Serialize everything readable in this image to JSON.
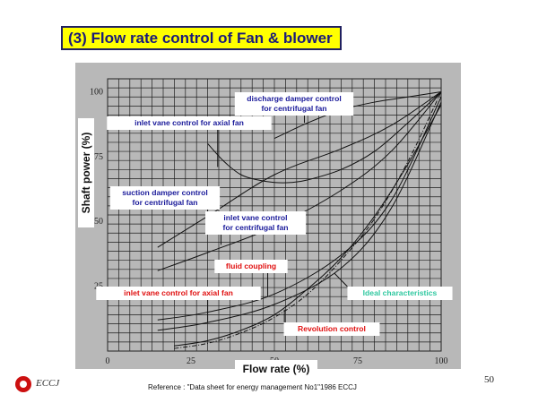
{
  "slide": {
    "title": "(3) Flow rate control of Fan & blower",
    "page_number": "50",
    "reference": "Reference : \"Data sheet for energy management No1\"1986 ECCJ",
    "logo_text": "ECCJ"
  },
  "colors": {
    "plot_background": "#b8b8b8",
    "title_background": "#ffff00",
    "label_blue": "#1a1a9a",
    "label_red": "#e01010",
    "label_green": "#30c8a0"
  },
  "chart_data": {
    "type": "line",
    "xlabel": "Flow rate  (%)",
    "ylabel": "Shaft power  (%)",
    "xlim": [
      0,
      100
    ],
    "ylim": [
      0,
      105
    ],
    "x_ticks": [
      "0",
      "25",
      "50",
      "75",
      "100"
    ],
    "y_ticks": [
      "25",
      "50",
      "75",
      "100"
    ],
    "grid": true,
    "series": [
      {
        "name": "discharge damper control for centrifugal fan",
        "color": "label_blue",
        "x": [
          50,
          60,
          70,
          80,
          90,
          100
        ],
        "y": [
          82,
          88,
          93,
          96,
          98,
          100
        ]
      },
      {
        "name": "inlet  vane  control for axial fan",
        "color": "label_blue",
        "x": [
          30,
          35,
          40,
          45,
          50,
          55,
          60,
          70,
          80,
          90,
          100
        ],
        "y": [
          80,
          73,
          68,
          66,
          65,
          65,
          66,
          70,
          77,
          88,
          100
        ]
      },
      {
        "name": "suction damper control for centrifugal fan",
        "color": "label_blue",
        "x": [
          15,
          30,
          50,
          70,
          85,
          100
        ],
        "y": [
          40,
          52,
          68,
          78,
          87,
          100
        ]
      },
      {
        "name": "inlet  vane  control for centrifugal fan",
        "color": "label_blue",
        "x": [
          15,
          30,
          50,
          70,
          85,
          100
        ],
        "y": [
          31,
          38,
          48,
          62,
          77,
          100
        ]
      },
      {
        "name": "fluid coupling",
        "color": "label_red",
        "x": [
          15,
          30,
          50,
          70,
          85,
          100
        ],
        "y": [
          12,
          15,
          22,
          37,
          58,
          98
        ]
      },
      {
        "name": "inlet  vane  control for axial fan",
        "color": "label_red",
        "x": [
          15,
          30,
          50,
          70,
          85,
          100
        ],
        "y": [
          8,
          11,
          18,
          32,
          55,
          96
        ]
      },
      {
        "name": "Revolution  control",
        "color": "label_red",
        "x": [
          20,
          30,
          40,
          50,
          60,
          70,
          80,
          90,
          100
        ],
        "y": [
          2,
          4,
          8,
          14,
          24,
          36,
          52,
          72,
          95
        ]
      },
      {
        "name": "Ideal characteristics",
        "color": "label_green",
        "x": [
          20,
          30,
          40,
          50,
          60,
          70,
          80,
          90,
          100
        ],
        "y": [
          1,
          3,
          7,
          13,
          22,
          35,
          51,
          73,
          100
        ]
      }
    ],
    "annotations": [
      {
        "text": "discharge damper control\nfor centrifugal fan",
        "color": "label_blue",
        "points_to": [
          59,
          88
        ]
      },
      {
        "text": "inlet  vane  control for axial fan",
        "color": "label_blue",
        "points_to": [
          33,
          71
        ]
      },
      {
        "text": "suction damper control\nfor centrifugal fan",
        "color": "label_blue",
        "points_to": [
          30,
          52
        ]
      },
      {
        "text": "inlet  vane  control\nfor centrifugal fan",
        "color": "label_blue",
        "points_to": [
          34,
          41
        ]
      },
      {
        "text": "fluid coupling",
        "color": "label_red",
        "points_to": [
          48,
          21
        ]
      },
      {
        "text": "inlet  vane  control for axial fan",
        "color": "label_red",
        "points_to": [
          30,
          11
        ]
      },
      {
        "text": "Ideal characteristics",
        "color": "label_green",
        "points_to": [
          68,
          30
        ]
      },
      {
        "text": "Revolution  control",
        "color": "label_red",
        "points_to": [
          53,
          16
        ]
      }
    ]
  }
}
